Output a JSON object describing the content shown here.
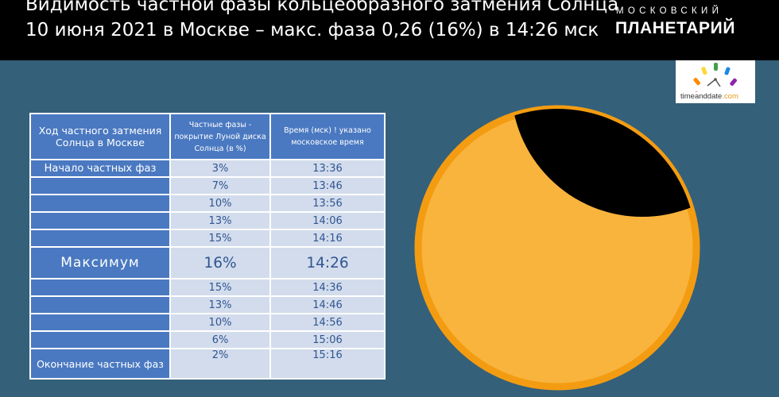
{
  "header": {
    "title_line1": "Видимость частной фазы кольцеобразного затмения Солнца",
    "title_line2": "10 июня 2021 в Москве – макс. фаза 0,26 (16%) в 14:26 мск",
    "logo_top": "МОСКОВСКИЙ",
    "logo_bottom": "ПЛАНЕТАРИЙ"
  },
  "badge": {
    "name": "timeanddate",
    "suffix": ".com"
  },
  "table": {
    "headers": [
      "Ход частного затмения Солнца в Москве",
      "Частные фазы - покрытие Луной диска Солнца (в %)",
      "Время (мск) ! указано московское время"
    ],
    "rows": [
      {
        "label": "Начало частных фаз",
        "phase": "3%",
        "time": "13:36"
      },
      {
        "label": "",
        "phase": "7%",
        "time": "13:46"
      },
      {
        "label": "",
        "phase": "10%",
        "time": "13:56"
      },
      {
        "label": "",
        "phase": "13%",
        "time": "14:06"
      },
      {
        "label": "",
        "phase": "15%",
        "time": "14:16"
      },
      {
        "label": "Максимум",
        "phase": "16%",
        "time": "14:26"
      },
      {
        "label": "",
        "phase": "15%",
        "time": "14:36"
      },
      {
        "label": "",
        "phase": "13%",
        "time": "14:46"
      },
      {
        "label": "",
        "phase": "10%",
        "time": "14:56"
      },
      {
        "label": "",
        "phase": "6%",
        "time": "15:06"
      },
      {
        "label": "Окончание частных фаз",
        "phase": "2%",
        "time": "15:16"
      }
    ]
  },
  "illustration": {
    "sun_color": "#f9b43d",
    "sun_rim_color": "#f39c12",
    "moon_color": "#000000",
    "coverage_percent": 16
  }
}
